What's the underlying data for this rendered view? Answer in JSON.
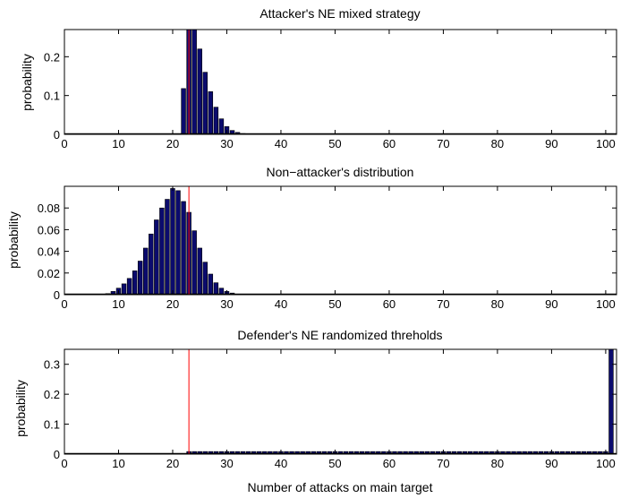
{
  "chart_data": [
    {
      "type": "bar",
      "title": "Attacker's NE mixed strategy",
      "ylabel": "probability",
      "xlabel": "",
      "xlim": [
        0,
        102
      ],
      "ylim": [
        0,
        0.27
      ],
      "xticks": [
        "0",
        "10",
        "20",
        "30",
        "40",
        "50",
        "60",
        "70",
        "80",
        "90",
        "100"
      ],
      "yticks": [
        {
          "v": 0,
          "label": "0"
        },
        {
          "v": 0.1,
          "label": "0.1"
        },
        {
          "v": 0.2,
          "label": "0.2"
        }
      ],
      "threshold_x": 23,
      "x": [
        22,
        23,
        24,
        25,
        26,
        27,
        28,
        29,
        30,
        31,
        32,
        33
      ],
      "values": [
        0.118,
        0.275,
        0.275,
        0.22,
        0.16,
        0.11,
        0.07,
        0.04,
        0.02,
        0.01,
        0.005,
        0.002
      ],
      "bar_color": "#0b0b6e",
      "line_color": "#ff0000"
    },
    {
      "type": "bar",
      "title": "Non−attacker's distribution",
      "ylabel": "probability",
      "xlabel": "",
      "xlim": [
        0,
        102
      ],
      "ylim": [
        0,
        0.1
      ],
      "xticks": [
        "0",
        "10",
        "20",
        "30",
        "40",
        "50",
        "60",
        "70",
        "80",
        "90",
        "100"
      ],
      "yticks": [
        {
          "v": 0,
          "label": "0"
        },
        {
          "v": 0.02,
          "label": "0.02"
        },
        {
          "v": 0.04,
          "label": "0.04"
        },
        {
          "v": 0.06,
          "label": "0.06"
        },
        {
          "v": 0.08,
          "label": "0.08"
        }
      ],
      "threshold_x": 23,
      "x": [
        8,
        9,
        10,
        11,
        12,
        13,
        14,
        15,
        16,
        17,
        18,
        19,
        20,
        21,
        22,
        23,
        24,
        25,
        26,
        27,
        28,
        29,
        30,
        31,
        32
      ],
      "values": [
        0.001,
        0.003,
        0.006,
        0.01,
        0.015,
        0.022,
        0.031,
        0.043,
        0.056,
        0.069,
        0.08,
        0.088,
        0.098,
        0.096,
        0.086,
        0.076,
        0.059,
        0.043,
        0.03,
        0.019,
        0.011,
        0.006,
        0.003,
        0.0015,
        0.0005
      ],
      "bar_color": "#0b0b6e",
      "line_color": "#ff0000"
    },
    {
      "type": "bar",
      "title": "Defender's NE randomized threholds",
      "ylabel": "probability",
      "xlabel": "Number of attacks on main target",
      "xlim": [
        0,
        102
      ],
      "ylim": [
        0,
        0.35
      ],
      "xticks": [
        "0",
        "10",
        "20",
        "30",
        "40",
        "50",
        "60",
        "70",
        "80",
        "90",
        "100"
      ],
      "yticks": [
        {
          "v": 0,
          "label": "0"
        },
        {
          "v": 0.1,
          "label": "0.1"
        },
        {
          "v": 0.2,
          "label": "0.2"
        },
        {
          "v": 0.3,
          "label": "0.3"
        }
      ],
      "threshold_x": 23,
      "range_bars": {
        "from": 23,
        "to": 100,
        "value": 0.0085
      },
      "x": [
        101
      ],
      "values": [
        0.36
      ],
      "bar_color": "#0b0b6e",
      "line_color": "#ff0000"
    }
  ]
}
